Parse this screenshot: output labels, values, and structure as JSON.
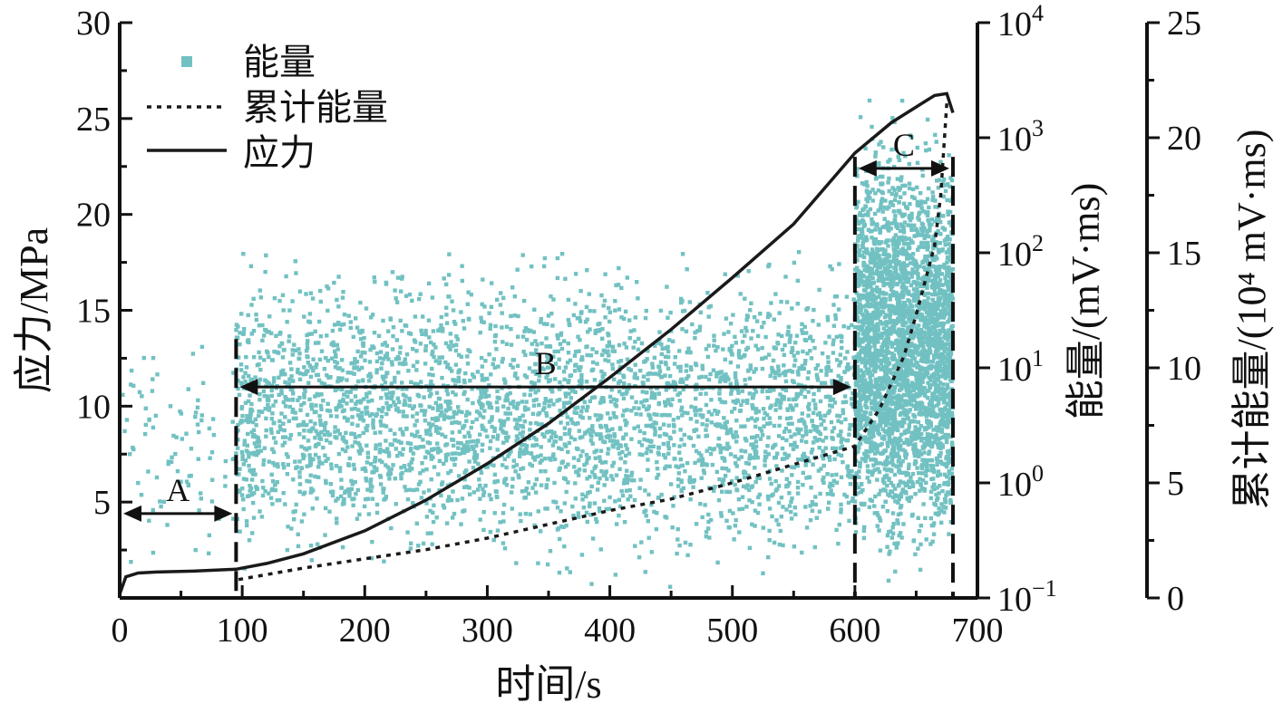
{
  "chart_data": {
    "type": "scatter",
    "xlabel": "时间/s",
    "y_left_label": "应力/MPa",
    "y_right1_label": "能量/(mV·ms)",
    "y_right2_label": "累计能量/(10⁴ mV·ms)",
    "xlim": [
      0,
      700
    ],
    "y_left_lim": [
      0,
      30
    ],
    "y_right1_lim": [
      0.1,
      10000
    ],
    "y_right1_scale": "log",
    "y_right2_lim": [
      0,
      25
    ],
    "x_ticks": [
      "0",
      "100",
      "200",
      "300",
      "400",
      "500",
      "600",
      "700"
    ],
    "y_left_ticks": [
      "5",
      "10",
      "15",
      "20",
      "25",
      "30"
    ],
    "y_right2_ticks": [
      "0",
      "5",
      "10",
      "15",
      "20",
      "25"
    ],
    "legend_position": "top-left",
    "colors": {
      "energy": "#72c1c2",
      "line": "#1a1a1a"
    },
    "series": [
      {
        "name": "能量",
        "kind": "scatter",
        "axis": "y_right1",
        "description_of_density": [
          {
            "x_range": [
              0,
              95
            ],
            "y_log10_range": [
              -1,
              1.5
            ],
            "count": 90
          },
          {
            "x_range": [
              95,
              600
            ],
            "y_log10_range": [
              -1,
              2.2
            ],
            "count": 3400
          },
          {
            "x_range": [
              600,
              680
            ],
            "y_log10_range": [
              -1,
              3.4
            ],
            "count": 3200
          }
        ]
      },
      {
        "name": "累计能量",
        "kind": "line",
        "style": "dotted",
        "axis": "y_right2",
        "x": [
          97,
          150,
          200,
          250,
          300,
          350,
          400,
          450,
          500,
          550,
          600,
          620,
          640,
          650,
          660,
          665,
          670,
          675
        ],
        "values": [
          0.8,
          1.3,
          1.7,
          2.1,
          2.6,
          3.2,
          3.8,
          4.3,
          5.0,
          5.8,
          6.6,
          8.2,
          10.5,
          12.3,
          14.3,
          15.3,
          17.5,
          21.5
        ]
      },
      {
        "name": "应力",
        "kind": "line",
        "style": "solid",
        "axis": "y_left",
        "x": [
          0,
          5,
          15,
          30,
          60,
          95,
          120,
          150,
          200,
          250,
          300,
          350,
          400,
          450,
          500,
          550,
          600,
          630,
          650,
          665,
          675,
          680
        ],
        "values": [
          0.2,
          1.1,
          1.3,
          1.35,
          1.4,
          1.5,
          1.8,
          2.3,
          3.5,
          5.1,
          7.0,
          9.1,
          11.5,
          14.0,
          16.7,
          19.5,
          23.2,
          24.8,
          25.6,
          26.2,
          26.3,
          25.3
        ]
      }
    ],
    "regions": [
      {
        "label": "A",
        "x_range": [
          0,
          95
        ],
        "stress_y": 4.4
      },
      {
        "label": "B",
        "x_range": [
          95,
          600
        ],
        "stress_y": 11.0
      },
      {
        "label": "C",
        "x_range": [
          600,
          680
        ],
        "stress_y": 22.4
      }
    ]
  }
}
